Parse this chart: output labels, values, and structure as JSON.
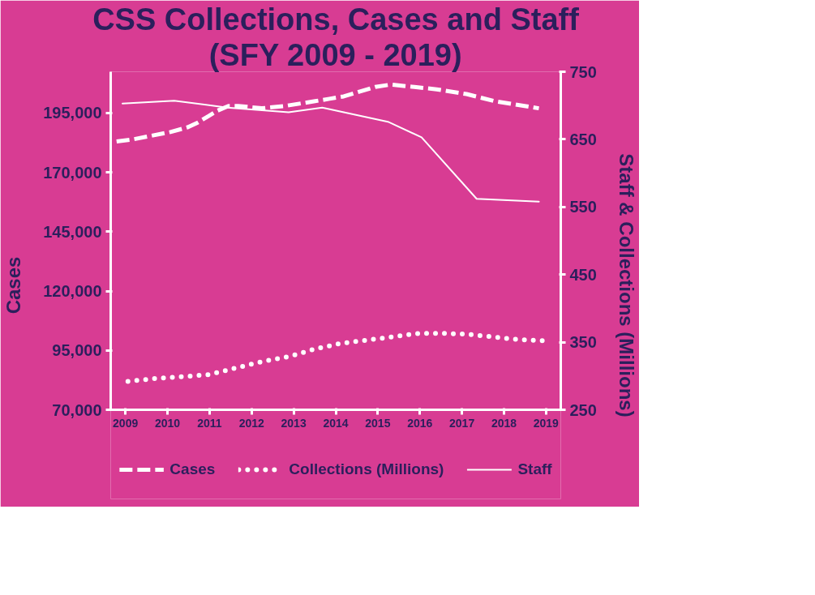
{
  "chart_data": {
    "type": "line",
    "title": "CSS Collections, Cases and Staff",
    "subtitle": "(SFY 2009 - 2019)",
    "ylabel": "Cases",
    "y2label": "Staff & Collections (Millions)",
    "xlim": [
      2008.65,
      2019.35
    ],
    "xticks": [
      2009,
      2010,
      2011,
      2012,
      2013,
      2014,
      2015,
      2016,
      2017,
      2018,
      2019
    ],
    "ylim": [
      70000,
      212400
    ],
    "yticks": [
      {
        "value": 70000,
        "label": "70,000"
      },
      {
        "value": 95000,
        "label": "95,000"
      },
      {
        "value": 120000,
        "label": "120,000"
      },
      {
        "value": 145000,
        "label": "145,000"
      },
      {
        "value": 170000,
        "label": "170,000"
      },
      {
        "value": 195000,
        "label": "195,000"
      }
    ],
    "y2lim": [
      250,
      750
    ],
    "y2ticks": [
      250,
      350,
      450,
      550,
      650,
      750
    ],
    "grid": false,
    "legend": "bottom",
    "marker": "none",
    "series": [
      {
        "name": "Cases",
        "color": "#ffffff",
        "line_style": "dashed",
        "x": [
          2008.79,
          2009.21,
          2010.07,
          2010.48,
          2010.72,
          2011.19,
          2011.45,
          2011.68,
          2012.24,
          2012.8,
          2013.51,
          2013.85,
          2014.19,
          2014.94,
          2015.31,
          2015.87,
          2016.4,
          2017.11,
          2017.78,
          2018.49,
          2018.83
        ],
        "values": [
          183000,
          184000,
          187000,
          189000,
          191000,
          196000,
          198000,
          198000,
          197000,
          198000,
          200000,
          201000,
          202000,
          206000,
          207000,
          206000,
          205000,
          203000,
          200000,
          198000,
          197000
        ]
      },
      {
        "name": "Collections (Millions)",
        "color": "#ffffff",
        "line_style": "dotted",
        "axis": "y2",
        "x": [
          2009.06,
          2009.69,
          2010.35,
          2010.99,
          2011.64,
          2012.3,
          2012.91,
          2013.51,
          2014.11,
          2014.73,
          2015.37,
          2015.97,
          2016.53,
          2017.09,
          2017.71,
          2018.31,
          2019.0
        ],
        "values": [
          292,
          296,
          299,
          302,
          312,
          322,
          329,
          340,
          348,
          353,
          358,
          363,
          363,
          362,
          358,
          354,
          352
        ]
      },
      {
        "name": "Staff",
        "color": "#ffffff",
        "line_style": "solid",
        "axis": "y2",
        "x": [
          2008.93,
          2010.16,
          2011.42,
          2012.88,
          2013.68,
          2015.24,
          2016.04,
          2017.35,
          2018.83
        ],
        "values": [
          703,
          707,
          697,
          690,
          697,
          676,
          653,
          562,
          558
        ]
      }
    ]
  }
}
